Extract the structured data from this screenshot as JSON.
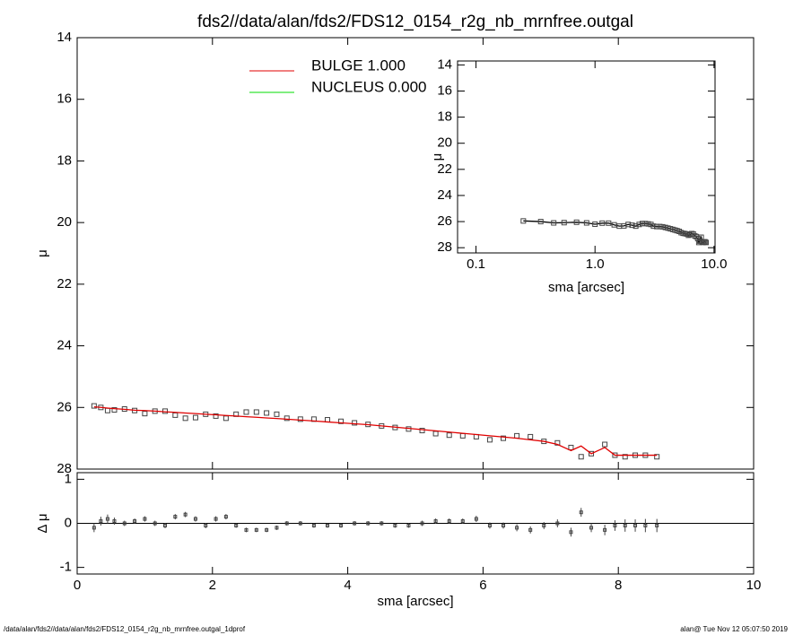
{
  "chart_data": [
    {
      "type": "scatter",
      "title": "fds2//data/alan/fds2/FDS12_0154_r2g_nb_mrnfree.outgal",
      "ylabel": "μ",
      "xlim": [
        0,
        10
      ],
      "ylim": [
        28,
        14
      ],
      "yticks": [
        14,
        16,
        18,
        20,
        22,
        24,
        26,
        28
      ],
      "x": [
        0.25,
        0.35,
        0.45,
        0.55,
        0.7,
        0.85,
        1.0,
        1.15,
        1.3,
        1.45,
        1.6,
        1.75,
        1.9,
        2.05,
        2.2,
        2.35,
        2.5,
        2.65,
        2.8,
        2.95,
        3.1,
        3.3,
        3.5,
        3.7,
        3.9,
        4.1,
        4.3,
        4.5,
        4.7,
        4.9,
        5.1,
        5.3,
        5.5,
        5.7,
        5.9,
        6.1,
        6.3,
        6.5,
        6.7,
        6.9,
        7.1,
        7.3,
        7.45,
        7.6,
        7.8,
        7.95,
        8.1,
        8.25,
        8.4,
        8.57
      ],
      "series": [
        {
          "color": "#444444",
          "marker": "square",
          "values": [
            25.95,
            26.0,
            26.1,
            26.08,
            26.05,
            26.1,
            26.2,
            26.12,
            26.12,
            26.25,
            26.35,
            26.33,
            26.22,
            26.28,
            26.35,
            26.22,
            26.15,
            26.15,
            26.18,
            26.22,
            26.35,
            26.38,
            26.38,
            26.4,
            26.45,
            26.5,
            26.55,
            26.6,
            26.65,
            26.7,
            26.75,
            26.85,
            26.9,
            26.92,
            26.95,
            27.05,
            27.0,
            26.92,
            26.95,
            27.1,
            27.15,
            27.3,
            27.6,
            27.5,
            27.2,
            27.55,
            27.6,
            27.55,
            27.55,
            27.6
          ]
        },
        {
          "color": "#e00000",
          "marker": "line",
          "values": [
            25.98,
            26.0,
            26.02,
            26.04,
            26.06,
            26.09,
            26.1,
            26.12,
            26.14,
            26.16,
            26.18,
            26.2,
            26.22,
            26.24,
            26.26,
            26.28,
            26.3,
            26.32,
            26.34,
            26.36,
            26.38,
            26.41,
            26.44,
            26.47,
            26.5,
            26.53,
            26.56,
            26.6,
            26.64,
            26.68,
            26.72,
            26.76,
            26.8,
            26.84,
            26.88,
            26.92,
            26.96,
            27.0,
            27.05,
            27.1,
            27.2,
            27.4,
            27.25,
            27.5,
            27.3,
            27.55,
            27.55,
            27.55,
            27.55,
            27.55
          ]
        }
      ],
      "legend": [
        {
          "name": "BULGE  1.000",
          "color": "#e00000"
        },
        {
          "name": "NUCLEUS  0.000",
          "color": "#00dd00"
        }
      ]
    },
    {
      "type": "errorbar",
      "xlabel": "sma [arcsec]",
      "ylabel": "Δ μ",
      "xlim": [
        0,
        10
      ],
      "xticks": [
        0,
        2,
        4,
        6,
        8,
        10
      ],
      "ylim": [
        -1.15,
        1.15
      ],
      "yticks": [
        -1,
        0,
        1
      ],
      "x": [
        0.25,
        0.35,
        0.45,
        0.55,
        0.7,
        0.85,
        1.0,
        1.15,
        1.3,
        1.45,
        1.6,
        1.75,
        1.9,
        2.05,
        2.2,
        2.35,
        2.5,
        2.65,
        2.8,
        2.95,
        3.1,
        3.3,
        3.5,
        3.7,
        3.9,
        4.1,
        4.3,
        4.5,
        4.7,
        4.9,
        5.1,
        5.3,
        5.5,
        5.7,
        5.9,
        6.1,
        6.3,
        6.5,
        6.7,
        6.9,
        7.1,
        7.3,
        7.45,
        7.6,
        7.8,
        7.95,
        8.1,
        8.25,
        8.4,
        8.57
      ],
      "values": [
        -0.1,
        0.05,
        0.1,
        0.05,
        0.0,
        0.05,
        0.1,
        0.0,
        -0.05,
        0.15,
        0.2,
        0.1,
        -0.05,
        0.1,
        0.15,
        -0.05,
        -0.15,
        -0.15,
        -0.15,
        -0.1,
        0.0,
        0.0,
        -0.05,
        -0.05,
        -0.05,
        0.0,
        0.0,
        0.0,
        -0.05,
        -0.05,
        0.0,
        0.05,
        0.05,
        0.05,
        0.1,
        -0.05,
        -0.05,
        -0.1,
        -0.15,
        -0.05,
        0.0,
        -0.2,
        0.25,
        -0.1,
        -0.15,
        -0.05,
        -0.05,
        -0.05,
        -0.05,
        -0.05
      ],
      "errors": [
        0.1,
        0.1,
        0.1,
        0.08,
        0.06,
        0.06,
        0.06,
        0.06,
        0.06,
        0.06,
        0.06,
        0.06,
        0.06,
        0.06,
        0.06,
        0.05,
        0.05,
        0.05,
        0.05,
        0.05,
        0.05,
        0.05,
        0.05,
        0.05,
        0.05,
        0.05,
        0.05,
        0.05,
        0.05,
        0.05,
        0.06,
        0.06,
        0.06,
        0.06,
        0.07,
        0.07,
        0.07,
        0.08,
        0.08,
        0.08,
        0.09,
        0.1,
        0.1,
        0.1,
        0.12,
        0.12,
        0.14,
        0.14,
        0.15,
        0.15
      ],
      "color": "#444444"
    },
    {
      "type": "scatter",
      "xlabel": "sma [arcsec]",
      "ylabel": "μ",
      "xscale": "log",
      "xlim": [
        0.07,
        10.2
      ],
      "xticks": [
        {
          "value": 0.1,
          "label": "0.1"
        },
        {
          "value": 1,
          "label": "1.0"
        },
        {
          "value": 10,
          "label": "10.0"
        }
      ],
      "ylim": [
        28.4,
        13.7
      ],
      "yticks": [
        14,
        16,
        18,
        20,
        22,
        24,
        26,
        28
      ],
      "x": [
        0.25,
        0.35,
        0.45,
        0.55,
        0.7,
        0.85,
        1.0,
        1.15,
        1.3,
        1.45,
        1.6,
        1.75,
        1.9,
        2.05,
        2.2,
        2.35,
        2.5,
        2.65,
        2.8,
        2.95,
        3.1,
        3.3,
        3.5,
        3.7,
        3.9,
        4.1,
        4.3,
        4.5,
        4.7,
        4.9,
        5.1,
        5.3,
        5.5,
        5.7,
        5.9,
        6.1,
        6.3,
        6.5,
        6.7,
        6.9,
        7.1,
        7.3,
        7.45,
        7.6,
        7.8,
        7.95,
        8.1,
        8.25,
        8.4,
        8.57
      ],
      "series": [
        {
          "color": "#444444",
          "marker": "square",
          "values": [
            25.95,
            26.0,
            26.1,
            26.08,
            26.05,
            26.1,
            26.2,
            26.12,
            26.12,
            26.25,
            26.35,
            26.33,
            26.22,
            26.28,
            26.35,
            26.22,
            26.15,
            26.15,
            26.18,
            26.22,
            26.35,
            26.38,
            26.38,
            26.4,
            26.45,
            26.5,
            26.55,
            26.6,
            26.65,
            26.7,
            26.75,
            26.85,
            26.9,
            26.92,
            26.95,
            27.05,
            27.0,
            26.92,
            26.95,
            27.1,
            27.15,
            27.3,
            27.6,
            27.5,
            27.2,
            27.55,
            27.6,
            27.55,
            27.55,
            27.6
          ]
        }
      ]
    }
  ],
  "footer": {
    "left": "/data/alan/fds2//data/alan/fds2/FDS12_0154_r2g_nb_mrnfree.outgal_1dprof",
    "right": "alan@  Tue Nov 12 05:07:50 2019"
  }
}
